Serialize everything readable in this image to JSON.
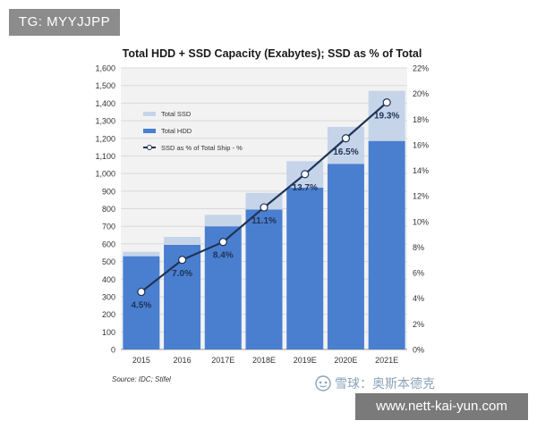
{
  "overlay": {
    "tg_badge": "TG: MYYJJPP",
    "watermark_text": "雪球：奥斯本德克",
    "url_badge": "www.nett-kai-yun.com"
  },
  "colors": {
    "hdd": "#4a7fd0",
    "ssd": "#c5d4e9",
    "line": "#1f3355",
    "grid": "#d9d9d9",
    "label": "#1f3355"
  },
  "chart_data": {
    "type": "bar",
    "stacked": true,
    "title": "Total  HDD + SSD Capacity (Exabytes); SSD as % of Total",
    "source": "Source: IDC; Stifel",
    "categories": [
      "2015",
      "2016",
      "2017E",
      "2018E",
      "2019E",
      "2020E",
      "2021E"
    ],
    "series": [
      {
        "name": "Total HDD",
        "values": [
          530,
          595,
          700,
          795,
          920,
          1055,
          1185
        ]
      },
      {
        "name": "Total SSD",
        "values": [
          25,
          45,
          65,
          95,
          150,
          210,
          285
        ]
      }
    ],
    "line_series": {
      "name": "SSD as % of Total Ship - %",
      "values": [
        4.5,
        7.0,
        8.4,
        11.1,
        13.7,
        16.5,
        19.3
      ],
      "labels": [
        "4.5%",
        "7.0%",
        "8.4%",
        "11.1%",
        "13.7%",
        "16.5%",
        "19.3%"
      ]
    },
    "legend": [
      "Total SSD",
      "Total HDD",
      "SSD as % of Total Ship - %"
    ],
    "legend_position": "top-left",
    "ylim": [
      0,
      1600
    ],
    "y_ticks": [
      "0",
      "100",
      "200",
      "300",
      "400",
      "500",
      "600",
      "700",
      "800",
      "900",
      "1,000",
      "1,100",
      "1,200",
      "1,300",
      "1,400",
      "1,500",
      "1,600"
    ],
    "y2lim": [
      0,
      22
    ],
    "y2_ticks": [
      "0%",
      "2%",
      "4%",
      "6%",
      "8%",
      "10%",
      "12%",
      "14%",
      "16%",
      "18%",
      "20%",
      "22%"
    ],
    "grid": true
  }
}
